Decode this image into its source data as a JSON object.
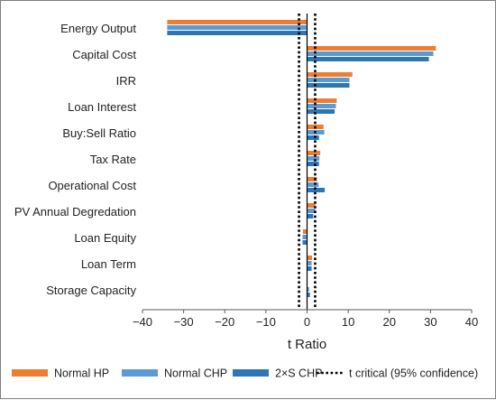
{
  "chart_data": {
    "type": "bar",
    "orientation": "horizontal",
    "xlabel": "t Ratio",
    "ylabel": "",
    "xlim": [
      -40,
      40
    ],
    "xticks": [
      -40,
      -30,
      -20,
      -10,
      0,
      10,
      20,
      30,
      40
    ],
    "grid": false,
    "legend_position": "bottom",
    "categories": [
      "Energy Output",
      "Capital Cost",
      "IRR",
      "Loan Interest",
      "Buy:Sell Ratio",
      "Tax Rate",
      "Operational Cost",
      "PV Annual Degredation",
      "Loan Equity",
      "Loan Term",
      "Storage Capacity"
    ],
    "series": [
      {
        "name": "Normal HP",
        "color": "#ED7D31",
        "values": [
          -34,
          31.3,
          11,
          7.2,
          4,
          3.2,
          2.4,
          2,
          -1,
          1.2,
          0
        ]
      },
      {
        "name": "Normal CHP",
        "color": "#5B9BD5",
        "values": [
          -34,
          30.7,
          10.3,
          7,
          4.2,
          3,
          2.8,
          2,
          -1.1,
          1.1,
          0.5
        ]
      },
      {
        "name": "2×S CHP",
        "color": "#2E75B6",
        "values": [
          -34,
          29.6,
          10.3,
          6.7,
          2.9,
          2.9,
          4.3,
          1.5,
          -1.1,
          1.1,
          0.7
        ]
      }
    ],
    "reference_lines": {
      "name": "t critical (95% confidence)",
      "values": [
        -1.96,
        1.96
      ],
      "style": "dotted",
      "color": "#000000"
    }
  }
}
